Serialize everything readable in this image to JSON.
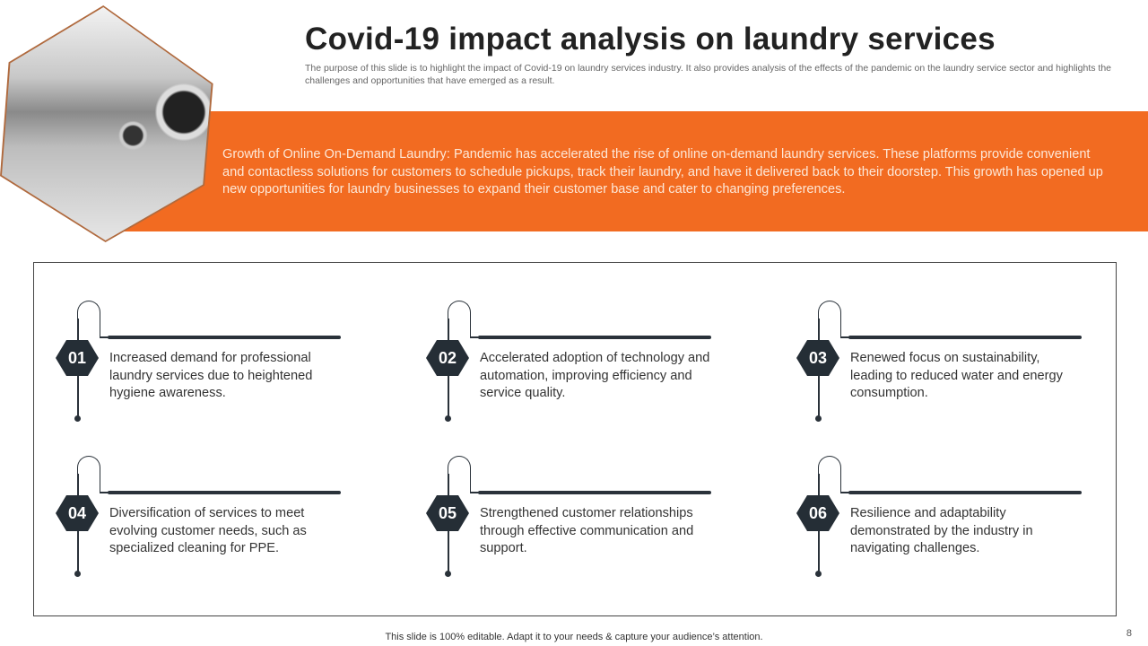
{
  "title": "Covid-19 impact analysis on laundry services",
  "subtitle": "The purpose of this slide is to highlight the impact of Covid-19 on laundry services industry. It also provides analysis of the effects of the pandemic on the laundry service sector and highlights the challenges and opportunities that have emerged as a result.",
  "banner": "Growth of Online On-Demand Laundry: Pandemic has accelerated the rise of online on-demand laundry services. These platforms provide convenient and contactless solutions for customers to schedule pickups, track their laundry, and have it delivered back to their doorstep. This growth has opened up new opportunities for laundry businesses to expand their customer base and cater to changing preferences.",
  "items": [
    {
      "num": "01",
      "text": "Increased demand for professional laundry services due to heightened hygiene awareness."
    },
    {
      "num": "02",
      "text": "Accelerated adoption of technology and automation, improving efficiency and service quality."
    },
    {
      "num": "03",
      "text": "Renewed focus on sustainability, leading to reduced water and energy consumption."
    },
    {
      "num": "04",
      "text": "Diversification of services to meet evolving customer needs, such as specialized cleaning for PPE."
    },
    {
      "num": "05",
      "text": "Strengthened customer relationships through effective communication and support."
    },
    {
      "num": "06",
      "text": "Resilience and adaptability demonstrated by the industry in navigating challenges."
    }
  ],
  "footer": "This slide is 100% editable. Adapt it to your needs & capture your audience’s attention.",
  "page_number": "8",
  "colors": {
    "accent": "#f26b21",
    "dark": "#252e36"
  }
}
